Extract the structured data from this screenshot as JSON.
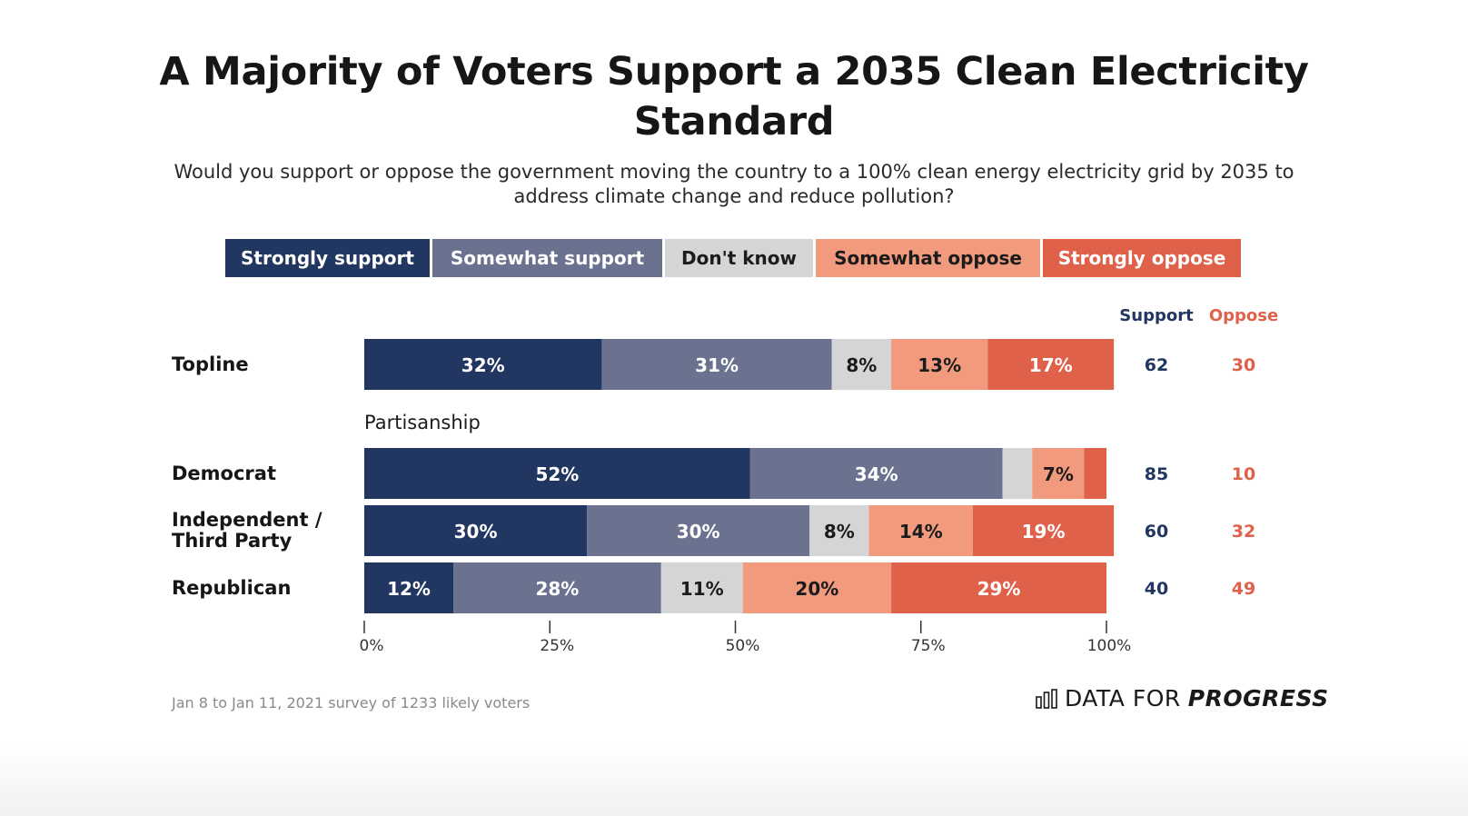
{
  "title": "A Majority of Voters Support a 2035 Clean Electricity Standard",
  "subtitle": "Would you support or oppose the government moving the country to a 100% clean energy electricity grid by 2035 to address climate change and reduce pollution?",
  "footer": {
    "source": "Jan 8 to Jan 11, 2021 survey of 1233 likely voters",
    "brand_part1": "DATA FOR",
    "brand_part2": "PROGRESS",
    "brand_icon": "bar-chart-icon"
  },
  "colors": {
    "strongly_support": "#213660",
    "somewhat_support": "#6a7290",
    "dont_know": "#d5d5d7",
    "somewhat_oppose": "#f19a7d",
    "strongly_oppose": "#e0614a",
    "support_text": "#213660",
    "oppose_text": "#e0614a"
  },
  "chart_data": {
    "type": "bar",
    "orientation": "horizontal",
    "stacked": true,
    "series": [
      {
        "name": "Strongly support",
        "color": "#213660",
        "text_color": "#ffffff"
      },
      {
        "name": "Somewhat support",
        "color": "#6a7290",
        "text_color": "#ffffff"
      },
      {
        "name": "Don't know",
        "color": "#d5d5d7",
        "text_color": "#1b1b1b"
      },
      {
        "name": "Somewhat oppose",
        "color": "#f19a7d",
        "text_color": "#1b1b1b"
      },
      {
        "name": "Strongly oppose",
        "color": "#e0614a",
        "text_color": "#ffffff"
      }
    ],
    "categories": [
      "Topline",
      "Democrat",
      "Independent / Third Party",
      "Republican"
    ],
    "values": [
      [
        32,
        31,
        8,
        13,
        17
      ],
      [
        52,
        34,
        4,
        7,
        3
      ],
      [
        30,
        30,
        8,
        14,
        19
      ],
      [
        12,
        28,
        11,
        20,
        29
      ]
    ],
    "data_labels": [
      [
        "32%",
        "31%",
        "8%",
        "13%",
        "17%"
      ],
      [
        "52%",
        "34%",
        "",
        "7%",
        ""
      ],
      [
        "30%",
        "30%",
        "8%",
        "14%",
        "19%"
      ],
      [
        "12%",
        "28%",
        "11%",
        "20%",
        "29%"
      ]
    ],
    "group_label": "Partisanship",
    "summary_headers": {
      "support": "Support",
      "oppose": "Oppose"
    },
    "support": [
      62,
      85,
      60,
      40
    ],
    "oppose": [
      30,
      10,
      32,
      49
    ],
    "xlim": [
      0,
      100
    ],
    "xticks": [
      "0%",
      "25%",
      "50%",
      "75%",
      "100%"
    ],
    "xlabel": "",
    "ylabel": "",
    "grid": false,
    "legend_position": "top"
  }
}
